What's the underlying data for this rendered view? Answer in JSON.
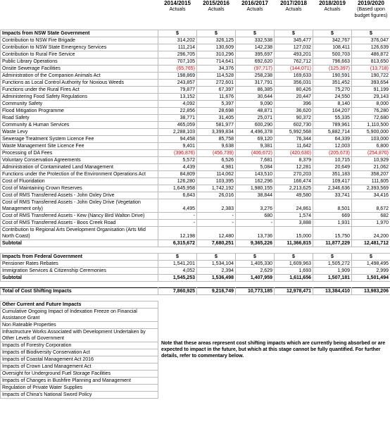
{
  "header": {
    "columns": [
      {
        "year": "2014/2015",
        "basis": "Actuals"
      },
      {
        "year": "2015/2016",
        "basis": "Actuals"
      },
      {
        "year": "2016/2017",
        "basis": "Actuals"
      },
      {
        "year": "2017/2018",
        "basis": "Actuals"
      },
      {
        "year": "2018/2019",
        "basis": "Actuals"
      },
      {
        "year": "2019/2020",
        "basis": "(Based upon budget figures)"
      }
    ]
  },
  "state": {
    "title": "Impacts from NSW State Government",
    "units": [
      "$",
      "$",
      "$",
      "$",
      "$",
      "$"
    ],
    "rows": [
      {
        "label": "Contribution to NSW Fire Brigade",
        "values": [
          "314,202",
          "326,125",
          "332,538",
          "345,477",
          "342,767",
          "376,047"
        ]
      },
      {
        "label": "Contribution to NSW State Emergency Services",
        "values": [
          "111,214",
          "130,609",
          "142,238",
          "127,032",
          "108,411",
          "126,639"
        ]
      },
      {
        "label": "Contribution to Rural Fire Service",
        "values": [
          "296,705",
          "310,296",
          "395,697",
          "493,201",
          "500,703",
          "486,872"
        ]
      },
      {
        "label": "Public Library Operations",
        "values": [
          "707,105",
          "714,641",
          "692,620",
          "762,712",
          "796,663",
          "813,650"
        ]
      },
      {
        "label": "Onsite Sewerage Facilities",
        "values": [
          "(65,765)",
          "34,376",
          "(97,717)",
          "(144,071)",
          "(125,397)",
          "(13,718)"
        ]
      },
      {
        "label": "Administration of the Companion Animals Act",
        "values": [
          "198,869",
          "114,528",
          "258,238",
          "169,633",
          "190,591",
          "190,722"
        ]
      },
      {
        "label": "Functions as Local Control Authority for Noxious Weeds",
        "values": [
          "243,857",
          "272,601",
          "317,791",
          "356,031",
          "351,452",
          "393,654"
        ]
      },
      {
        "label": "Functions under the Rural Fires Act",
        "values": [
          "79,877",
          "67,397",
          "86,385",
          "80,426",
          "75,270",
          "91,199"
        ]
      },
      {
        "label": "Administering Food Safety Regulations",
        "values": [
          "13,152",
          "11,676",
          "30,644",
          "20,447",
          "24,550",
          "29,143"
        ]
      },
      {
        "label": "Community Safety",
        "values": [
          "4,092",
          "5,397",
          "9,090",
          "396",
          "8,140",
          "8,000"
        ]
      },
      {
        "label": "Flood Mitigation Programme",
        "values": [
          "22,856",
          "28,698",
          "48,871",
          "36,620",
          "104,207",
          "76,280"
        ]
      },
      {
        "label": "Road Safety",
        "values": [
          "38,771",
          "31,405",
          "25,071",
          "90,372",
          "55,335",
          "72,680"
        ]
      },
      {
        "label": "Community & Human Services",
        "values": [
          "465,059",
          "581,977",
          "600,290",
          "602,730",
          "789,961",
          "1,110,500"
        ]
      },
      {
        "label": "Waste Levy",
        "values": [
          "2,288,103",
          "3,399,834",
          "4,496,378",
          "5,992,568",
          "5,882,714",
          "5,900,000"
        ]
      },
      {
        "label": "Sewerage Treatment System Licence Fee",
        "values": [
          "94,458",
          "85,758",
          "69,120",
          "76,344",
          "64,339",
          "103,000"
        ]
      },
      {
        "label": "Waste Management Site Licence Fee",
        "values": [
          "9,401",
          "9,638",
          "9,381",
          "11,642",
          "12,003",
          "6,800"
        ]
      },
      {
        "label": "Processing of DA Fees",
        "values": [
          "(396,876)",
          "(456,739)",
          "(406,672)",
          "(420,630)",
          "(205,673)",
          "(254,870)"
        ]
      },
      {
        "label": "Voluntary Conservation Agreements",
        "values": [
          "5,572",
          "6,526",
          "7,681",
          "8,379",
          "10,715",
          "10,929"
        ]
      },
      {
        "label": "Administration of Contaminated Land Management",
        "values": [
          "4,439",
          "4,981",
          "5,084",
          "12,281",
          "20,649",
          "21,062"
        ]
      },
      {
        "label": "Functions under the Protection of the Environment Operations Act",
        "values": [
          "84,809",
          "114,062",
          "143,510",
          "270,203",
          "351,183",
          "358,207"
        ]
      },
      {
        "label": "Cost of Fluoridation",
        "values": [
          "126,280",
          "103,395",
          "162,296",
          "166,474",
          "109,417",
          "111,605"
        ]
      },
      {
        "label": "Cost of Maintaining Crown Reserves",
        "values": [
          "1,645,958",
          "1,742,192",
          "1,980,155",
          "2,213,625",
          "2,346,636",
          "2,393,569"
        ]
      },
      {
        "label": "Cost of RMS Transferred Assets - John Oxley Drive",
        "values": [
          "6,843",
          "26,016",
          "38,844",
          "49,580",
          "33,741",
          "34,416"
        ]
      },
      {
        "label": "Cost of RMS Transferred Assets - John Oxley Drive (Vegetation Management only)",
        "values": [
          "4,495",
          "2,383",
          "3,276",
          "24,861",
          "8,501",
          "8,672"
        ]
      },
      {
        "label": "Cost of RMS Transferred Assets - Kew (Nancy Bird Walton Drive)",
        "values": [
          "-",
          "-",
          "680",
          "1,574",
          "669",
          "682"
        ]
      },
      {
        "label": "Cost of RMS Transferred Assets - Boos Creek Road",
        "values": [
          "-",
          "-",
          "-",
          "3,888",
          "1,931",
          "1,970"
        ]
      },
      {
        "label": "Contribution to Regional Arts Development Organisation (Arts Mid North Coast)",
        "values": [
          "12,198",
          "12,480",
          "13,736",
          "15,000",
          "15,750",
          "24,200"
        ]
      }
    ],
    "subtotal": {
      "label": "Subtotal",
      "values": [
        "6,315,672",
        "7,680,251",
        "9,365,226",
        "11,366,815",
        "11,877,229",
        "12,481,712"
      ]
    }
  },
  "federal": {
    "title": "Impacts from Federal Government",
    "units": [
      "$",
      "$",
      "$",
      "$",
      "$",
      "$"
    ],
    "rows": [
      {
        "label": "Pensioner Rates Rebates",
        "values": [
          "1,541,201",
          "1,534,104",
          "1,405,330",
          "1,609,963",
          "1,505,272",
          "1,498,495"
        ]
      },
      {
        "label": "Immigration Services & Citizenship Ceremonies",
        "values": [
          "4,052",
          "2,394",
          "2,629",
          "1,693",
          "1,909",
          "2,999"
        ]
      }
    ],
    "subtotal": {
      "label": "Subtotal",
      "values": [
        "1,545,253",
        "1,536,498",
        "1,407,959",
        "1,611,656",
        "1,507,181",
        "1,501,494"
      ]
    }
  },
  "total": {
    "label": "Total of Cost Shifting Impacts",
    "values": [
      "7,860,925",
      "9,216,749",
      "10,773,185",
      "12,978,471",
      "13,384,410",
      "13,983,206"
    ]
  },
  "other": {
    "title": "Other Current and Future Impacts",
    "items": [
      "Cumulative Ongoing Impact of Indexation Freeze on Financial Assistance Grant",
      "Non Rateable Properties",
      "Infrastructure Works Associated with Development Undertaken by Other Levels of Government",
      "Impacts of Forestry Corporation",
      "Impacts of Biodiversity Conservation Act",
      "Impacts of Coastal Management Act 2016",
      "Impacts of Crown Land Management Act",
      "Oversight for Underground Fuel Storage Facilities",
      "Impacts of Changes in Bushfire Planning and Management",
      "Regulation of Private Water Supplies",
      "Impacts of China's National Sword Policy"
    ],
    "note": "Note that these areas represent cost shifting impacts which are currently being absorbed or are expected to impact in the future, but which at this stage cannot be fully quantified. For further details, refer to commentary below."
  }
}
